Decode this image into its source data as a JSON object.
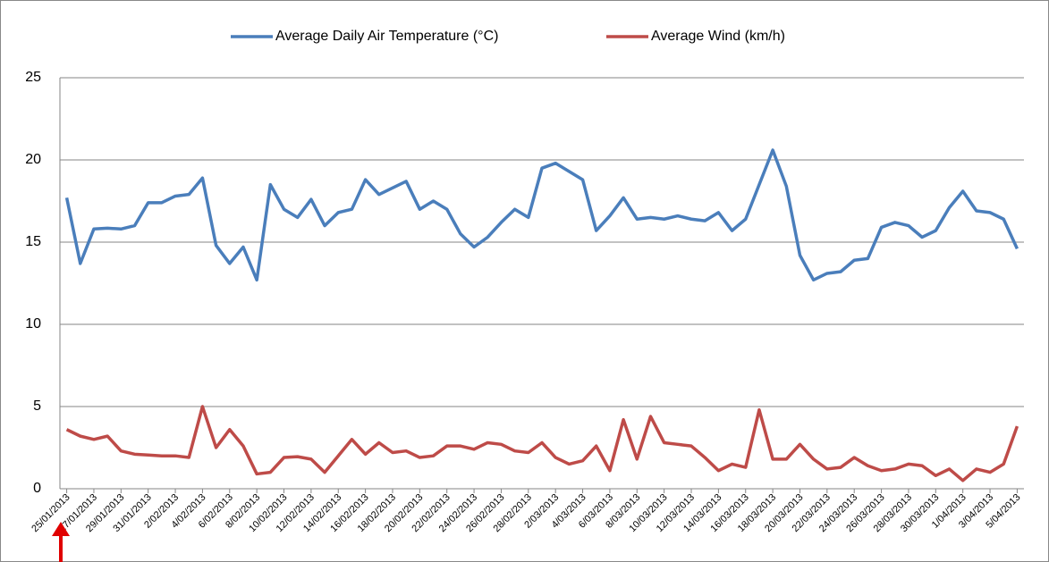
{
  "chart_data": {
    "type": "line",
    "categories": [
      "25/01/2013",
      null,
      "27/01/2013",
      null,
      "29/01/2013",
      null,
      "31/01/2013",
      null,
      "2/02/2013",
      null,
      "4/02/2013",
      null,
      "6/02/2013",
      null,
      "8/02/2013",
      null,
      "10/02/2013",
      null,
      "12/02/2013",
      null,
      "14/02/2013",
      null,
      "16/02/2013",
      null,
      "18/02/2013",
      null,
      "20/02/2013",
      null,
      "22/02/2013",
      null,
      "24/02/2013",
      null,
      "26/02/2013",
      null,
      "28/02/2013",
      null,
      "2/03/2013",
      null,
      "4/03/2013",
      null,
      "6/03/2013",
      null,
      "8/03/2013",
      null,
      "10/03/2013",
      null,
      "12/03/2013",
      null,
      "14/03/2013",
      null,
      "16/03/2013",
      null,
      "18/03/2013",
      null,
      "20/03/2013",
      null,
      "22/03/2013",
      null,
      "24/03/2013",
      null,
      "26/03/2013",
      null,
      "28/03/2013",
      null,
      "30/03/2013",
      null,
      "1/04/2013",
      null,
      "3/04/2013",
      null,
      "5/04/2013"
    ],
    "series": [
      {
        "name": "Average Daily Air Temperature (°C)",
        "color": "#4a7ebb",
        "values": [
          17.7,
          13.7,
          15.8,
          15.85,
          15.8,
          16.0,
          17.4,
          17.4,
          17.8,
          17.9,
          18.9,
          14.8,
          13.7,
          14.7,
          12.7,
          18.5,
          17.0,
          16.5,
          17.6,
          16.0,
          16.8,
          17.0,
          18.8,
          17.9,
          18.3,
          18.7,
          17.0,
          17.5,
          17.0,
          15.5,
          14.7,
          15.3,
          16.2,
          17.0,
          16.5,
          19.5,
          19.8,
          19.3,
          18.8,
          15.7,
          16.6,
          17.7,
          16.4,
          16.5,
          16.4,
          16.6,
          16.4,
          16.3,
          16.8,
          15.7,
          16.4,
          18.5,
          20.6,
          18.4,
          14.2,
          12.7,
          13.1,
          13.2,
          13.9,
          14.0,
          15.9,
          16.2,
          16.0,
          15.3,
          15.7,
          17.1,
          18.1,
          16.9,
          16.8,
          16.4,
          14.6
        ]
      },
      {
        "name": "Average Wind (km/h)",
        "color": "#be4b48",
        "values": [
          3.6,
          3.2,
          3.0,
          3.2,
          2.3,
          2.1,
          2.05,
          2.0,
          2.0,
          1.9,
          5.0,
          2.5,
          3.6,
          2.6,
          0.9,
          1.0,
          1.9,
          1.95,
          1.8,
          1.0,
          2.0,
          3.0,
          2.1,
          2.8,
          2.2,
          2.3,
          1.9,
          2.0,
          2.6,
          2.6,
          2.4,
          2.8,
          2.7,
          2.3,
          2.2,
          2.8,
          1.9,
          1.5,
          1.7,
          2.6,
          1.1,
          4.2,
          1.8,
          4.4,
          2.8,
          2.7,
          2.6,
          1.9,
          1.1,
          1.5,
          1.3,
          4.8,
          1.8,
          1.8,
          2.7,
          1.8,
          1.2,
          1.3,
          1.9,
          1.4,
          1.1,
          1.2,
          1.5,
          1.4,
          0.8,
          1.2,
          0.5,
          1.2,
          1.0,
          1.5,
          3.8
        ]
      }
    ],
    "ylim": [
      0,
      25
    ],
    "yticks": [
      0,
      5,
      10,
      15,
      20,
      25
    ],
    "grid": true,
    "legend": "top"
  }
}
